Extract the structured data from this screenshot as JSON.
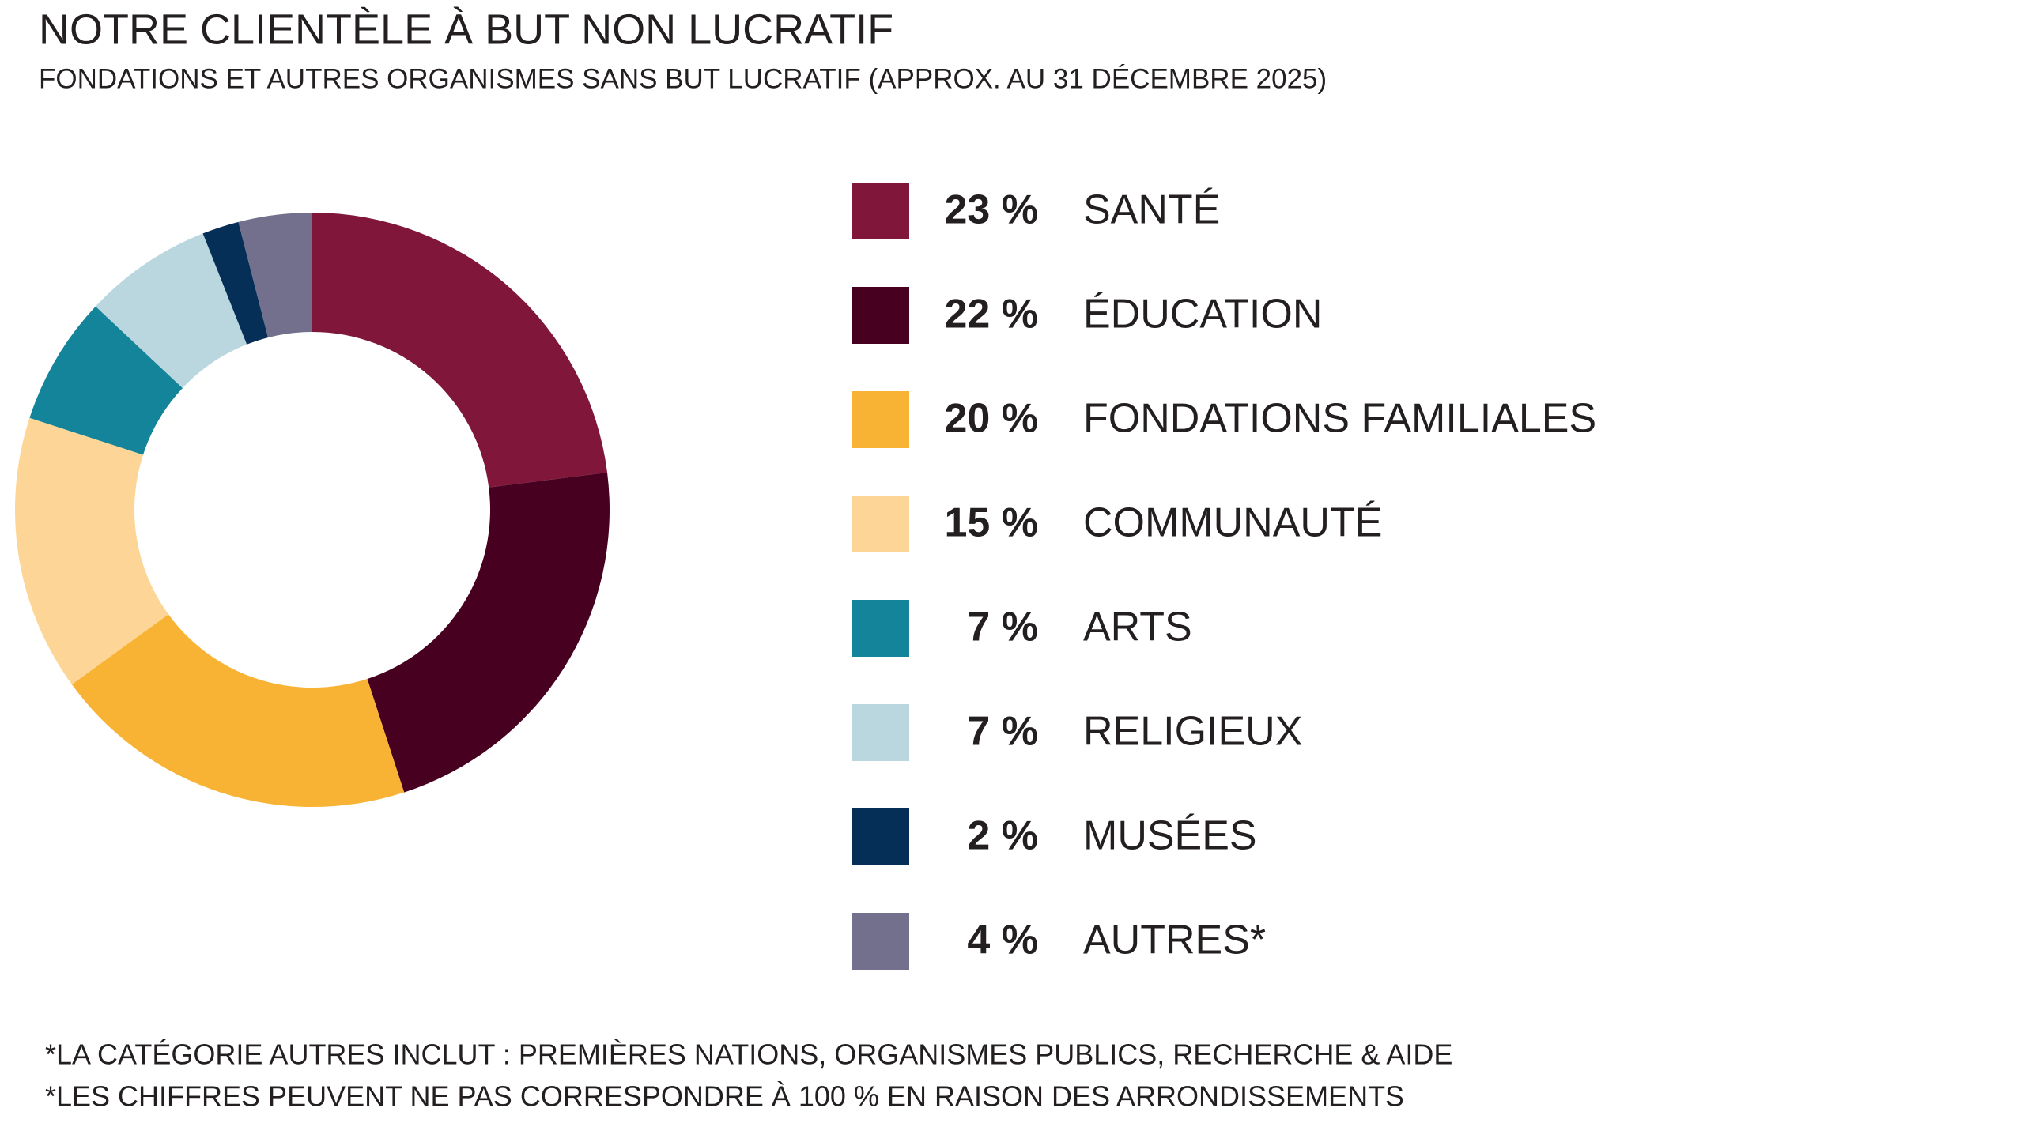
{
  "chart_data": {
    "type": "donut",
    "title": "NOTRE CLIENTÈLE À BUT NON LUCRATIF",
    "subtitle": "FONDATIONS ET AUTRES ORGANISMES SANS BUT LUCRATIF (APPROX. AU 31 DÉCEMBRE 2025)",
    "categories": [
      "SANTÉ",
      "ÉDUCATION",
      "FONDATIONS FAMILIALES",
      "COMMUNAUTÉ",
      "ARTS",
      "RELIGIEUX",
      "MUSÉES",
      "AUTRES*"
    ],
    "values": [
      23,
      22,
      20,
      15,
      7,
      7,
      2,
      4
    ],
    "value_labels": [
      "23 %",
      "22 %",
      "20 %",
      "15 %",
      "7 %",
      "7 %",
      "2 %",
      "4 %"
    ],
    "colors": [
      "#80173a",
      "#470020",
      "#f9b334",
      "#fdd697",
      "#14849a",
      "#bad7e0",
      "#062f57",
      "#72708c"
    ],
    "footnotes": [
      "*LA CATÉGORIE AUTRES INCLUT : PREMIÈRES NATIONS, ORGANISMES PUBLICS, RECHERCHE & AIDE",
      "*LES CHIFFRES PEUVENT NE PAS CORRESPONDRE À 100 % EN RAISON DES ARRONDISSEMENTS"
    ]
  }
}
